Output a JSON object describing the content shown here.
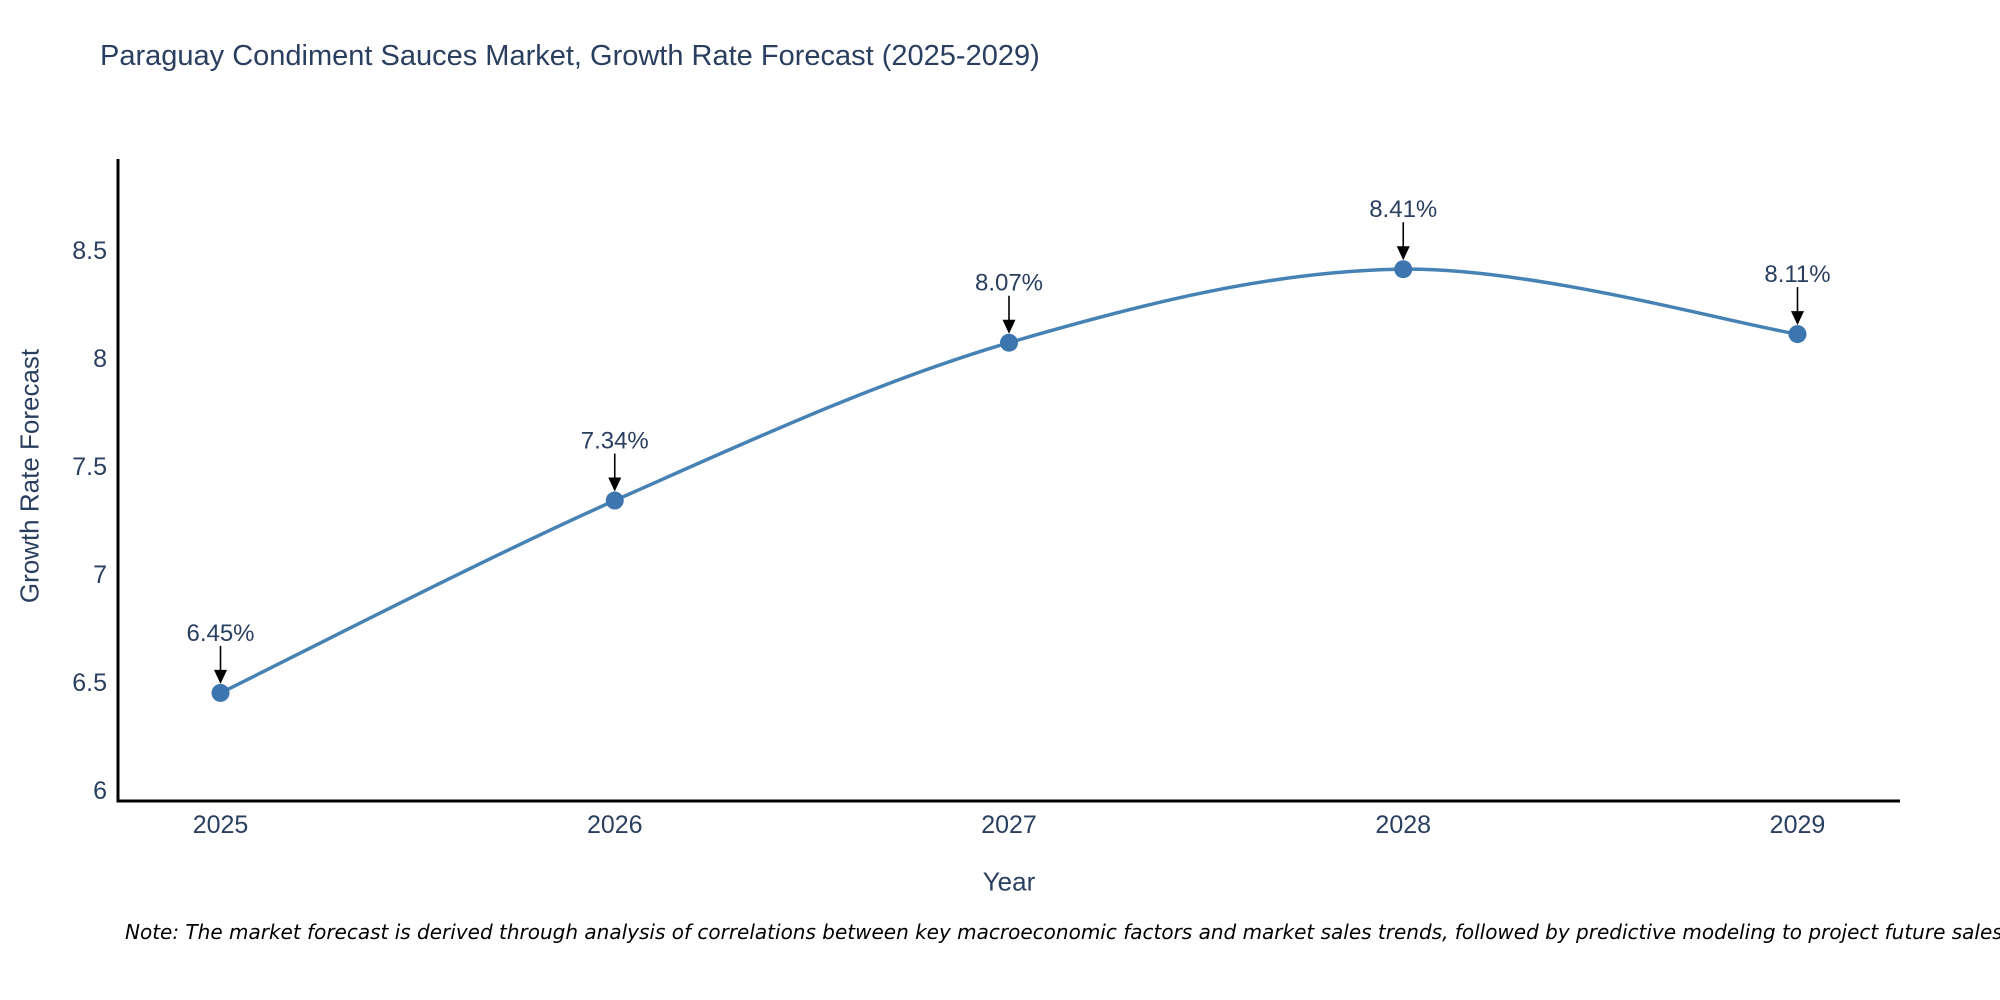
{
  "page": {
    "note": "Note: The market forecast is derived through analysis of correlations between key macroeconomic factors and market sales trends, followed by predictive modeling to project future sales"
  },
  "chart_data": {
    "type": "line",
    "title": "Paraguay Condiment Sauces Market, Growth Rate Forecast (2025-2029)",
    "xlabel": "Year",
    "ylabel": "Growth Rate Forecast",
    "x": [
      2025,
      2026,
      2027,
      2028,
      2029
    ],
    "x_tick_labels": [
      "2025",
      "2026",
      "2027",
      "2028",
      "2029"
    ],
    "values": [
      6.45,
      7.34,
      8.07,
      8.41,
      8.11
    ],
    "point_labels": [
      "6.45%",
      "7.34%",
      "8.07%",
      "8.41%",
      "8.11%"
    ],
    "yticks": [
      6,
      6.5,
      7,
      7.5,
      8,
      8.5
    ],
    "ylim": [
      5.95,
      8.92
    ],
    "xlim": [
      2024.74,
      2029.26
    ],
    "grid": false,
    "legend_position": "none",
    "line_shape": "spline",
    "colors": {
      "line": "#4682b4",
      "marker": "#3d76ae",
      "axis": "#000000",
      "text": "#2a3f5f",
      "annotation_arrow": "#000000",
      "note_text": "#000000"
    }
  }
}
